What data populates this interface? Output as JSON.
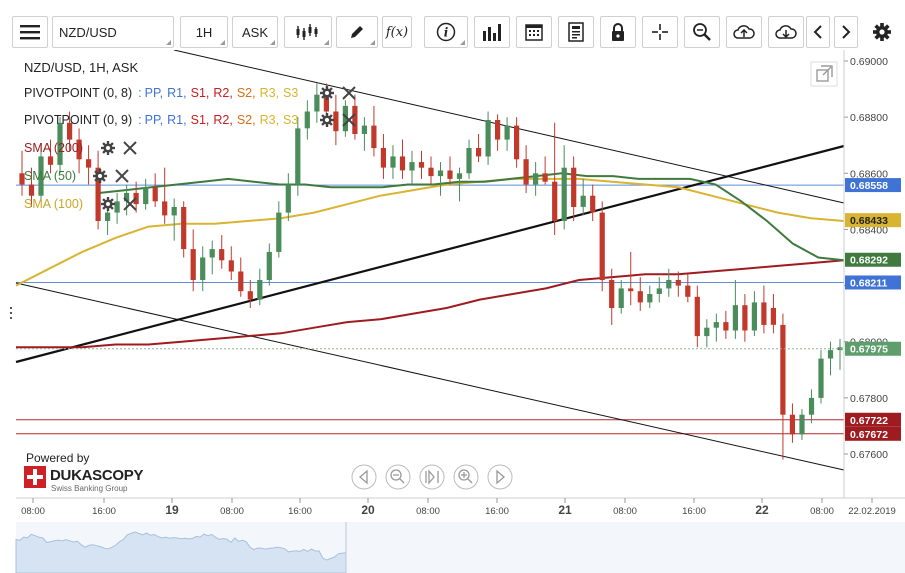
{
  "toolbar": {
    "menu_icon": "hamburger-icon",
    "instrument": "NZD/USD",
    "timeframe": "1H",
    "price_side": "ASK",
    "fx_label": "f(x)",
    "tools": [
      "candle-type-icon",
      "draw-pencil-icon",
      "function-icon",
      "info-icon",
      "bar-volume-icon",
      "calendar-icon",
      "report-icon",
      "lock-icon",
      "crosshair-icon",
      "zoom-icon",
      "upload-cloud-icon",
      "download-cloud-icon",
      "chevron-left-icon",
      "chevron-right-icon",
      "settings-gear-icon"
    ]
  },
  "legend": {
    "title": "NZD/USD, 1H, ASK",
    "pivot1": {
      "name": "PIVOTPOINT (0, 8)",
      "sep": ":",
      "items": [
        "PP,",
        "R1,",
        "S1,",
        "R2,",
        "S2,",
        "R3,",
        "S3"
      ]
    },
    "pivot2": {
      "name": "PIVOTPOINT (0, 9)",
      "sep": ":",
      "items": [
        "PP,",
        "R1,",
        "S1,",
        "R2,",
        "S2,",
        "R3,",
        "S3"
      ]
    },
    "sma200": "SMA (200)",
    "sma50": "SMA (50)",
    "sma100": "SMA (100)"
  },
  "branding": {
    "powered_by": "Powered by",
    "logo_text": "DUKASCOPY",
    "tagline": "Swiss Banking Group"
  },
  "colors": {
    "bull": "#4a8c5a",
    "bear": "#c0392b",
    "sma200": "#9e1c20",
    "sma50": "#3f7a3f",
    "sma100": "#d8b431",
    "pp": "#3f74d6",
    "r1": "#3f74d6",
    "s1": "#c62020",
    "r2": "#c62020",
    "s2": "#d86f10",
    "r3": "#d8b431",
    "s3": "#d8b431",
    "price_line": "#4a8c5a"
  },
  "chart_data": {
    "type": "candlestick",
    "instrument": "NZD/USD",
    "interval": "1H",
    "ylim": [
      0.6752,
      0.6904
    ],
    "y_ticks": [
      "0.69000",
      "0.68800",
      "0.68600",
      "0.68400",
      "0.68200",
      "0.68000",
      "0.67800",
      "0.67600"
    ],
    "x_ticks": [
      "08:00",
      "16:00",
      "19",
      "08:00",
      "16:00",
      "20",
      "08:00",
      "16:00",
      "21",
      "08:00",
      "16:00",
      "22",
      "08:00",
      "22.02.2019"
    ],
    "horizontal_levels": [
      {
        "label": "0.68558",
        "value": 0.68558,
        "kind": "pivot-blue"
      },
      {
        "label": "0.68211",
        "value": 0.68211,
        "kind": "pivot-blue"
      },
      {
        "label": "0.67722",
        "value": 0.67722,
        "kind": "pivot-red"
      },
      {
        "label": "0.67672",
        "value": 0.67672,
        "kind": "pivot-red"
      }
    ],
    "price_tags": [
      {
        "label": "0.68433",
        "value": 0.68433,
        "kind": "sma100"
      },
      {
        "label": "0.68292",
        "value": 0.68292,
        "kind": "sma50"
      },
      {
        "label": "0.68211",
        "value": 0.68211,
        "kind": "pivot"
      },
      {
        "label": "0.67975",
        "value": 0.67975,
        "kind": "last"
      }
    ],
    "last_price": 0.67975,
    "candles": [
      {
        "o": 0.686,
        "h": 0.6868,
        "l": 0.6852,
        "c": 0.6856
      },
      {
        "o": 0.6856,
        "h": 0.6862,
        "l": 0.6848,
        "c": 0.6852
      },
      {
        "o": 0.6852,
        "h": 0.687,
        "l": 0.685,
        "c": 0.6866
      },
      {
        "o": 0.6866,
        "h": 0.6872,
        "l": 0.686,
        "c": 0.6863
      },
      {
        "o": 0.6863,
        "h": 0.688,
        "l": 0.686,
        "c": 0.6878
      },
      {
        "o": 0.6878,
        "h": 0.6882,
        "l": 0.6868,
        "c": 0.6872
      },
      {
        "o": 0.6872,
        "h": 0.6876,
        "l": 0.686,
        "c": 0.6865
      },
      {
        "o": 0.6865,
        "h": 0.687,
        "l": 0.6856,
        "c": 0.6862
      },
      {
        "o": 0.6862,
        "h": 0.6868,
        "l": 0.684,
        "c": 0.6843
      },
      {
        "o": 0.6843,
        "h": 0.685,
        "l": 0.6838,
        "c": 0.6846
      },
      {
        "o": 0.6846,
        "h": 0.6853,
        "l": 0.6842,
        "c": 0.685
      },
      {
        "o": 0.685,
        "h": 0.6856,
        "l": 0.6845,
        "c": 0.6853
      },
      {
        "o": 0.6853,
        "h": 0.6857,
        "l": 0.6846,
        "c": 0.6849
      },
      {
        "o": 0.6849,
        "h": 0.6858,
        "l": 0.6847,
        "c": 0.6855
      },
      {
        "o": 0.6855,
        "h": 0.686,
        "l": 0.6848,
        "c": 0.685
      },
      {
        "o": 0.685,
        "h": 0.6862,
        "l": 0.6842,
        "c": 0.6845
      },
      {
        "o": 0.6845,
        "h": 0.6851,
        "l": 0.6836,
        "c": 0.6848
      },
      {
        "o": 0.6848,
        "h": 0.685,
        "l": 0.683,
        "c": 0.6833
      },
      {
        "o": 0.6833,
        "h": 0.684,
        "l": 0.6818,
        "c": 0.6822
      },
      {
        "o": 0.6822,
        "h": 0.6834,
        "l": 0.6818,
        "c": 0.683
      },
      {
        "o": 0.683,
        "h": 0.6836,
        "l": 0.6824,
        "c": 0.6833
      },
      {
        "o": 0.6833,
        "h": 0.6838,
        "l": 0.6826,
        "c": 0.6829
      },
      {
        "o": 0.6829,
        "h": 0.6834,
        "l": 0.6822,
        "c": 0.6825
      },
      {
        "o": 0.6825,
        "h": 0.683,
        "l": 0.6816,
        "c": 0.6818
      },
      {
        "o": 0.6818,
        "h": 0.6822,
        "l": 0.6812,
        "c": 0.6815
      },
      {
        "o": 0.6815,
        "h": 0.6826,
        "l": 0.6813,
        "c": 0.6822
      },
      {
        "o": 0.6822,
        "h": 0.6835,
        "l": 0.682,
        "c": 0.6832
      },
      {
        "o": 0.6832,
        "h": 0.685,
        "l": 0.683,
        "c": 0.6846
      },
      {
        "o": 0.6846,
        "h": 0.686,
        "l": 0.6843,
        "c": 0.6856
      },
      {
        "o": 0.6856,
        "h": 0.688,
        "l": 0.6852,
        "c": 0.6876
      },
      {
        "o": 0.6876,
        "h": 0.6886,
        "l": 0.6872,
        "c": 0.6882
      },
      {
        "o": 0.6882,
        "h": 0.6892,
        "l": 0.6878,
        "c": 0.6888
      },
      {
        "o": 0.6888,
        "h": 0.6892,
        "l": 0.6879,
        "c": 0.6882
      },
      {
        "o": 0.6882,
        "h": 0.6888,
        "l": 0.687,
        "c": 0.6875
      },
      {
        "o": 0.6875,
        "h": 0.6886,
        "l": 0.6873,
        "c": 0.6884
      },
      {
        "o": 0.6884,
        "h": 0.6888,
        "l": 0.6872,
        "c": 0.6874
      },
      {
        "o": 0.6874,
        "h": 0.688,
        "l": 0.6868,
        "c": 0.6877
      },
      {
        "o": 0.6877,
        "h": 0.6884,
        "l": 0.6866,
        "c": 0.6869
      },
      {
        "o": 0.6869,
        "h": 0.6874,
        "l": 0.6858,
        "c": 0.6862
      },
      {
        "o": 0.6862,
        "h": 0.687,
        "l": 0.6858,
        "c": 0.6866
      },
      {
        "o": 0.6866,
        "h": 0.6872,
        "l": 0.6858,
        "c": 0.6861
      },
      {
        "o": 0.6861,
        "h": 0.6868,
        "l": 0.6856,
        "c": 0.6864
      },
      {
        "o": 0.6864,
        "h": 0.6868,
        "l": 0.6858,
        "c": 0.6862
      },
      {
        "o": 0.6862,
        "h": 0.6866,
        "l": 0.6856,
        "c": 0.6859
      },
      {
        "o": 0.6859,
        "h": 0.6864,
        "l": 0.6852,
        "c": 0.6861
      },
      {
        "o": 0.6861,
        "h": 0.6866,
        "l": 0.6856,
        "c": 0.6858
      },
      {
        "o": 0.6858,
        "h": 0.6862,
        "l": 0.685,
        "c": 0.686
      },
      {
        "o": 0.686,
        "h": 0.6872,
        "l": 0.6858,
        "c": 0.6869
      },
      {
        "o": 0.6869,
        "h": 0.6874,
        "l": 0.6864,
        "c": 0.6866
      },
      {
        "o": 0.6866,
        "h": 0.6882,
        "l": 0.6863,
        "c": 0.6879
      },
      {
        "o": 0.6879,
        "h": 0.6881,
        "l": 0.6868,
        "c": 0.6872
      },
      {
        "o": 0.6872,
        "h": 0.688,
        "l": 0.6868,
        "c": 0.6877
      },
      {
        "o": 0.6877,
        "h": 0.688,
        "l": 0.6862,
        "c": 0.6865
      },
      {
        "o": 0.6865,
        "h": 0.687,
        "l": 0.6853,
        "c": 0.6856
      },
      {
        "o": 0.6856,
        "h": 0.6864,
        "l": 0.6852,
        "c": 0.686
      },
      {
        "o": 0.686,
        "h": 0.6866,
        "l": 0.6856,
        "c": 0.6857
      },
      {
        "o": 0.6857,
        "h": 0.6878,
        "l": 0.6838,
        "c": 0.6843
      },
      {
        "o": 0.6843,
        "h": 0.687,
        "l": 0.684,
        "c": 0.6862
      },
      {
        "o": 0.6862,
        "h": 0.6866,
        "l": 0.6843,
        "c": 0.6848
      },
      {
        "o": 0.6848,
        "h": 0.6858,
        "l": 0.6845,
        "c": 0.6852
      },
      {
        "o": 0.6852,
        "h": 0.6856,
        "l": 0.6843,
        "c": 0.6846
      },
      {
        "o": 0.6846,
        "h": 0.685,
        "l": 0.6818,
        "c": 0.6822
      },
      {
        "o": 0.6822,
        "h": 0.6826,
        "l": 0.6806,
        "c": 0.6812
      },
      {
        "o": 0.6812,
        "h": 0.6822,
        "l": 0.681,
        "c": 0.6819
      },
      {
        "o": 0.6819,
        "h": 0.6832,
        "l": 0.6813,
        "c": 0.6818
      },
      {
        "o": 0.6818,
        "h": 0.6823,
        "l": 0.6811,
        "c": 0.6814
      },
      {
        "o": 0.6814,
        "h": 0.682,
        "l": 0.6812,
        "c": 0.6817
      },
      {
        "o": 0.6817,
        "h": 0.6823,
        "l": 0.6814,
        "c": 0.6819
      },
      {
        "o": 0.6819,
        "h": 0.6826,
        "l": 0.6816,
        "c": 0.6822
      },
      {
        "o": 0.6822,
        "h": 0.6825,
        "l": 0.6816,
        "c": 0.682
      },
      {
        "o": 0.682,
        "h": 0.6824,
        "l": 0.6814,
        "c": 0.6816
      },
      {
        "o": 0.6816,
        "h": 0.682,
        "l": 0.6798,
        "c": 0.6802
      },
      {
        "o": 0.6802,
        "h": 0.6808,
        "l": 0.6798,
        "c": 0.6805
      },
      {
        "o": 0.6805,
        "h": 0.681,
        "l": 0.68,
        "c": 0.6807
      },
      {
        "o": 0.6807,
        "h": 0.6811,
        "l": 0.6801,
        "c": 0.6804
      },
      {
        "o": 0.6804,
        "h": 0.6822,
        "l": 0.6801,
        "c": 0.6813
      },
      {
        "o": 0.6813,
        "h": 0.6817,
        "l": 0.68,
        "c": 0.6804
      },
      {
        "o": 0.6804,
        "h": 0.6818,
        "l": 0.6802,
        "c": 0.6814
      },
      {
        "o": 0.6814,
        "h": 0.682,
        "l": 0.6803,
        "c": 0.6806
      },
      {
        "o": 0.6812,
        "h": 0.6817,
        "l": 0.6803,
        "c": 0.6806
      },
      {
        "o": 0.6806,
        "h": 0.681,
        "l": 0.6758,
        "c": 0.6774
      },
      {
        "o": 0.6774,
        "h": 0.6778,
        "l": 0.6764,
        "c": 0.6767
      },
      {
        "o": 0.6767,
        "h": 0.6776,
        "l": 0.6765,
        "c": 0.6774
      },
      {
        "o": 0.6774,
        "h": 0.6783,
        "l": 0.6771,
        "c": 0.678
      },
      {
        "o": 0.678,
        "h": 0.6797,
        "l": 0.6778,
        "c": 0.6794
      },
      {
        "o": 0.6794,
        "h": 0.68,
        "l": 0.6788,
        "c": 0.6797
      },
      {
        "o": 0.6797,
        "h": 0.6801,
        "l": 0.679,
        "c": 0.6798
      }
    ],
    "sma50_values": [
      0.6853,
      0.6854,
      0.6855,
      0.6856,
      0.6857,
      0.6858,
      0.6857,
      0.6856,
      0.6856,
      0.6855,
      0.6855,
      0.6855,
      0.6856,
      0.6856,
      0.6857,
      0.6857,
      0.6858,
      0.6859,
      0.686,
      0.6859,
      0.6859,
      0.6858,
      0.6858,
      0.6858,
      0.6856,
      0.685,
      0.6843,
      0.6835,
      0.683,
      0.6829
    ],
    "sma100_values": [
      0.682,
      0.6826,
      0.6832,
      0.6837,
      0.6841,
      0.6842,
      0.6842,
      0.6843,
      0.6844,
      0.6846,
      0.6849,
      0.6852,
      0.6854,
      0.6856,
      0.6857,
      0.6858,
      0.6858,
      0.6858,
      0.6857,
      0.6856,
      0.6855,
      0.6852,
      0.6849,
      0.6846,
      0.6844,
      0.6843
    ],
    "sma200_values": [
      0.6798,
      0.6798,
      0.6798,
      0.6799,
      0.6799,
      0.68,
      0.6801,
      0.6802,
      0.6803,
      0.6805,
      0.6807,
      0.6808,
      0.681,
      0.6812,
      0.6815,
      0.6817,
      0.6819,
      0.6822,
      0.6823,
      0.6824,
      0.6824,
      0.6825,
      0.6826,
      0.6827,
      0.6828,
      0.6829
    ]
  }
}
